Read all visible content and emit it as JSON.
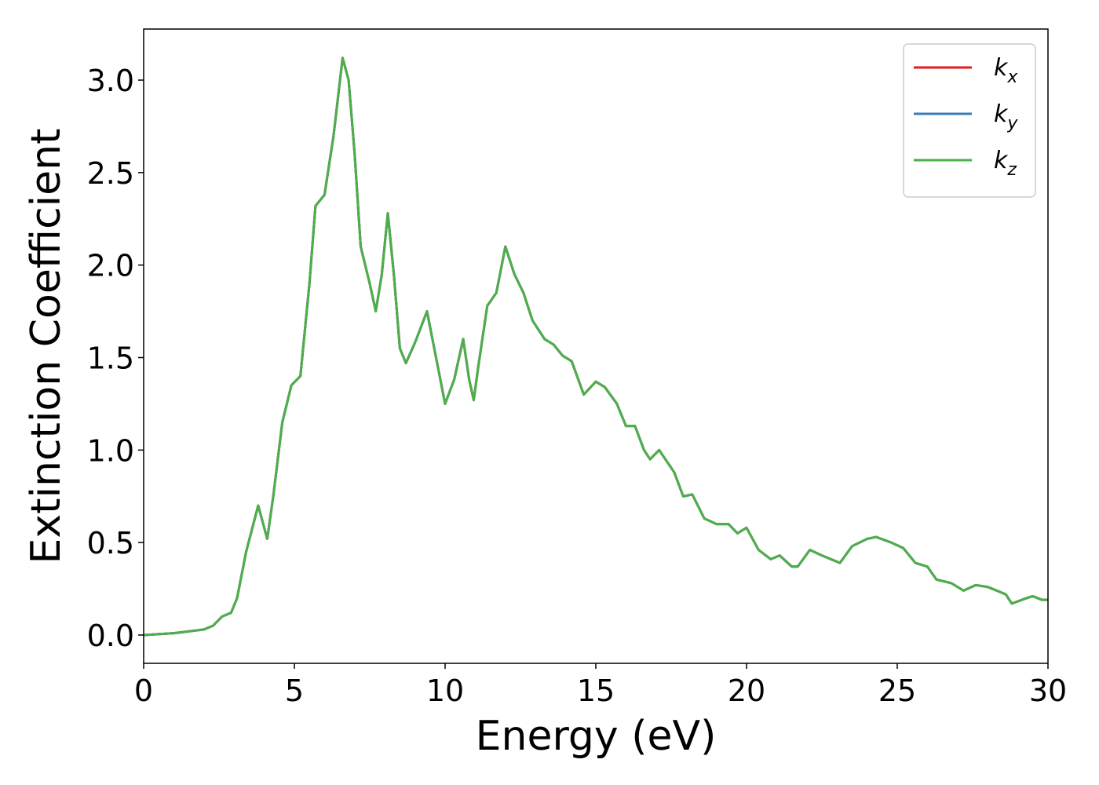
{
  "chart_data": {
    "type": "line",
    "xlabel": "Energy (eV)",
    "ylabel": "Extinction Coefficient",
    "x": [
      0,
      1,
      2,
      2.3,
      2.6,
      2.9,
      3.1,
      3.4,
      3.8,
      4.1,
      4.3,
      4.6,
      4.9,
      5.2,
      5.5,
      5.7,
      6.0,
      6.3,
      6.6,
      6.8,
      7.0,
      7.2,
      7.5,
      7.7,
      7.9,
      8.1,
      8.3,
      8.5,
      8.7,
      9.0,
      9.4,
      9.7,
      10.0,
      10.3,
      10.6,
      10.8,
      10.95,
      11.1,
      11.4,
      11.7,
      12.0,
      12.3,
      12.6,
      12.9,
      13.3,
      13.6,
      13.9,
      14.2,
      14.6,
      15.0,
      15.3,
      15.7,
      16.0,
      16.3,
      16.6,
      16.8,
      17.1,
      17.6,
      17.9,
      18.2,
      18.6,
      19.0,
      19.4,
      19.7,
      20.0,
      20.4,
      20.8,
      21.1,
      21.5,
      21.7,
      22.1,
      22.5,
      22.8,
      23.1,
      23.5,
      24.0,
      24.3,
      24.8,
      25.2,
      25.6,
      26.0,
      26.3,
      26.8,
      27.2,
      27.6,
      28.0,
      28.6,
      28.8,
      29.3,
      29.5,
      29.8,
      30
    ],
    "series": [
      {
        "name": "kx",
        "color": "#e41a1c",
        "values": [
          0.0,
          0.01,
          0.03,
          0.05,
          0.1,
          0.12,
          0.2,
          0.45,
          0.7,
          0.52,
          0.75,
          1.15,
          1.35,
          1.4,
          1.9,
          2.32,
          2.38,
          2.7,
          3.12,
          3.0,
          2.6,
          2.1,
          1.9,
          1.75,
          1.95,
          2.28,
          1.95,
          1.55,
          1.47,
          1.58,
          1.75,
          1.5,
          1.25,
          1.38,
          1.6,
          1.38,
          1.27,
          1.45,
          1.78,
          1.85,
          2.1,
          1.95,
          1.85,
          1.7,
          1.6,
          1.57,
          1.51,
          1.48,
          1.3,
          1.37,
          1.34,
          1.25,
          1.13,
          1.13,
          1.0,
          0.95,
          1.0,
          0.88,
          0.75,
          0.76,
          0.63,
          0.6,
          0.6,
          0.55,
          0.58,
          0.46,
          0.41,
          0.43,
          0.37,
          0.37,
          0.46,
          0.43,
          0.41,
          0.39,
          0.48,
          0.52,
          0.53,
          0.5,
          0.47,
          0.39,
          0.37,
          0.3,
          0.28,
          0.24,
          0.27,
          0.26,
          0.22,
          0.17,
          0.2,
          0.21,
          0.19,
          0.19
        ]
      },
      {
        "name": "ky",
        "color": "#377eb8",
        "values": [
          0.0,
          0.01,
          0.03,
          0.05,
          0.1,
          0.12,
          0.2,
          0.45,
          0.7,
          0.52,
          0.75,
          1.15,
          1.35,
          1.4,
          1.9,
          2.32,
          2.38,
          2.7,
          3.12,
          3.0,
          2.6,
          2.1,
          1.9,
          1.75,
          1.95,
          2.28,
          1.95,
          1.55,
          1.47,
          1.58,
          1.75,
          1.5,
          1.25,
          1.38,
          1.6,
          1.38,
          1.27,
          1.45,
          1.78,
          1.85,
          2.1,
          1.95,
          1.85,
          1.7,
          1.6,
          1.57,
          1.51,
          1.48,
          1.3,
          1.37,
          1.34,
          1.25,
          1.13,
          1.13,
          1.0,
          0.95,
          1.0,
          0.88,
          0.75,
          0.76,
          0.63,
          0.6,
          0.6,
          0.55,
          0.58,
          0.46,
          0.41,
          0.43,
          0.37,
          0.37,
          0.46,
          0.43,
          0.41,
          0.39,
          0.48,
          0.52,
          0.53,
          0.5,
          0.47,
          0.39,
          0.37,
          0.3,
          0.28,
          0.24,
          0.27,
          0.26,
          0.22,
          0.17,
          0.2,
          0.21,
          0.19,
          0.19
        ]
      },
      {
        "name": "kz",
        "color": "#4daf4a",
        "values": [
          0.0,
          0.01,
          0.03,
          0.05,
          0.1,
          0.12,
          0.2,
          0.45,
          0.7,
          0.52,
          0.75,
          1.15,
          1.35,
          1.4,
          1.9,
          2.32,
          2.38,
          2.7,
          3.12,
          3.0,
          2.6,
          2.1,
          1.9,
          1.75,
          1.95,
          2.28,
          1.95,
          1.55,
          1.47,
          1.58,
          1.75,
          1.5,
          1.25,
          1.38,
          1.6,
          1.38,
          1.27,
          1.45,
          1.78,
          1.85,
          2.1,
          1.95,
          1.85,
          1.7,
          1.6,
          1.57,
          1.51,
          1.48,
          1.3,
          1.37,
          1.34,
          1.25,
          1.13,
          1.13,
          1.0,
          0.95,
          1.0,
          0.88,
          0.75,
          0.76,
          0.63,
          0.6,
          0.6,
          0.55,
          0.58,
          0.46,
          0.41,
          0.43,
          0.37,
          0.37,
          0.46,
          0.43,
          0.41,
          0.39,
          0.48,
          0.52,
          0.53,
          0.5,
          0.47,
          0.39,
          0.37,
          0.3,
          0.28,
          0.24,
          0.27,
          0.26,
          0.22,
          0.17,
          0.2,
          0.21,
          0.19,
          0.19
        ]
      }
    ],
    "xlim": [
      0,
      30
    ],
    "xticks": [
      0,
      5,
      10,
      15,
      20,
      25,
      30
    ],
    "ylim": [
      -0.153,
      3.276
    ],
    "yticks": [
      {
        "value": 0,
        "label": "0.0"
      },
      0.5,
      {
        "value": 1,
        "label": "1.0"
      },
      1.5,
      {
        "value": 2,
        "label": "2.0"
      },
      2.5,
      {
        "value": 3,
        "label": "3.0"
      }
    ],
    "legend": "upper right",
    "grid": false
  }
}
